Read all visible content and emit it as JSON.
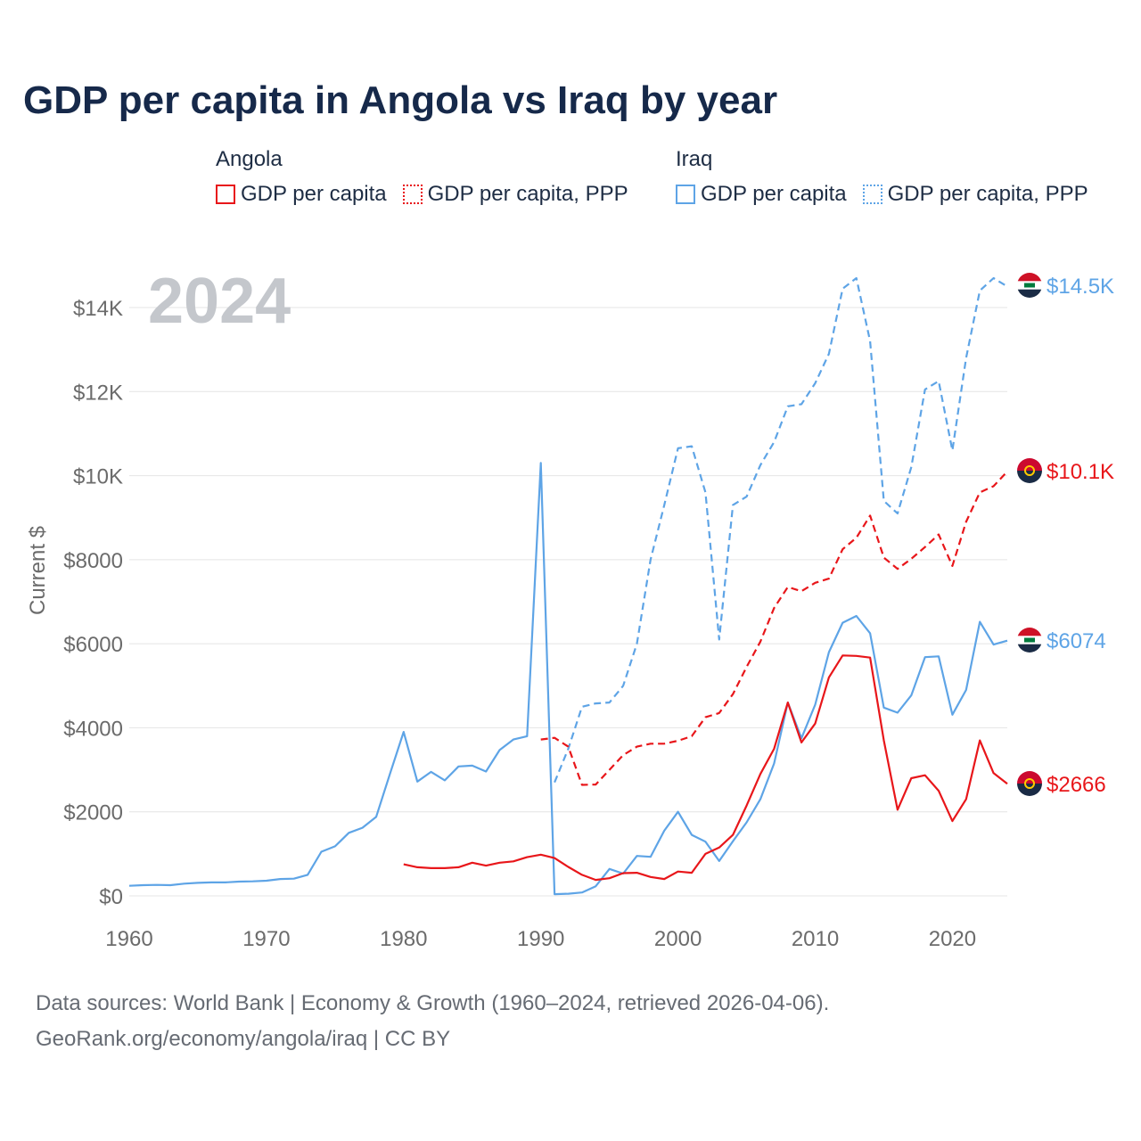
{
  "title": "GDP per capita in Angola vs Iraq by year",
  "year_overlay": "2024",
  "legend": {
    "groups": [
      {
        "name": "Angola",
        "items": [
          "GDP per capita",
          "GDP per capita, PPP"
        ]
      },
      {
        "name": "Iraq",
        "items": [
          "GDP per capita",
          "GDP per capita, PPP"
        ]
      }
    ]
  },
  "source": {
    "line1": "Data sources: World Bank | Economy & Growth (1960–2024, retrieved 2026-04-06).",
    "line2": "GeoRank.org/economy/angola/iraq | CC BY"
  },
  "colors": {
    "angola": "#e8161a",
    "iraq": "#5ea4e6",
    "grid": "#e4e4e4",
    "axis_text": "#6b6b6b",
    "overlay": "#c4c7cc"
  },
  "chart_data": {
    "type": "line",
    "title": "GDP per capita in Angola vs Iraq by year",
    "xlabel": "",
    "ylabel": "Current $",
    "xlim": [
      1960,
      2024
    ],
    "ylim": [
      0,
      14000
    ],
    "grid": true,
    "x_ticks": [
      1960,
      1970,
      1980,
      1990,
      2000,
      2010,
      2020
    ],
    "x_tick_labels": [
      "1960",
      "1970",
      "1980",
      "1990",
      "2000",
      "2010",
      "2020"
    ],
    "y_ticks": [
      0,
      2000,
      4000,
      6000,
      8000,
      10000,
      12000,
      14000
    ],
    "y_tick_labels": [
      "$0",
      "$2000",
      "$4000",
      "$6000",
      "$8000",
      "$10K",
      "$12K",
      "$14K"
    ],
    "series": [
      {
        "name": "Iraq GDP per capita",
        "country": "Iraq",
        "style": "solid",
        "color": "#5ea4e6",
        "end_label": "$6074",
        "x": [
          1960,
          1961,
          1962,
          1963,
          1964,
          1965,
          1966,
          1967,
          1968,
          1969,
          1970,
          1971,
          1972,
          1973,
          1974,
          1975,
          1976,
          1977,
          1978,
          1979,
          1980,
          1981,
          1982,
          1983,
          1984,
          1985,
          1986,
          1987,
          1988,
          1989,
          1990,
          1991,
          1992,
          1993,
          1994,
          1995,
          1996,
          1997,
          1998,
          1999,
          2000,
          2001,
          2002,
          2003,
          2004,
          2005,
          2006,
          2007,
          2008,
          2009,
          2010,
          2011,
          2012,
          2013,
          2014,
          2015,
          2016,
          2017,
          2018,
          2019,
          2020,
          2021,
          2022,
          2023,
          2024
        ],
        "values": [
          240,
          255,
          260,
          255,
          290,
          310,
          320,
          320,
          340,
          345,
          360,
          400,
          410,
          500,
          1050,
          1180,
          1500,
          1620,
          1880,
          2900,
          3900,
          2720,
          2950,
          2750,
          3080,
          3100,
          2960,
          3470,
          3720,
          3800,
          10300,
          40,
          50,
          80,
          230,
          640,
          530,
          950,
          930,
          1550,
          2000,
          1450,
          1290,
          830,
          1300,
          1750,
          2300,
          3150,
          4600,
          3750,
          4550,
          5800,
          6500,
          6660,
          6250,
          4480,
          4360,
          4770,
          5680,
          5700,
          4310,
          4900,
          6520,
          5980,
          6074
        ]
      },
      {
        "name": "Iraq GDP per capita, PPP",
        "country": "Iraq",
        "style": "dashed",
        "color": "#5ea4e6",
        "end_label": "$14.5K",
        "x": [
          1991,
          1992,
          1993,
          1994,
          1995,
          1996,
          1997,
          1998,
          1999,
          2000,
          2001,
          2002,
          2003,
          2004,
          2005,
          2006,
          2007,
          2008,
          2009,
          2010,
          2011,
          2012,
          2013,
          2014,
          2015,
          2016,
          2017,
          2018,
          2019,
          2020,
          2021,
          2022,
          2023,
          2024
        ],
        "values": [
          2700,
          3500,
          4500,
          4580,
          4600,
          5000,
          6000,
          8000,
          9300,
          10650,
          10700,
          9600,
          6100,
          9300,
          9500,
          10250,
          10800,
          11650,
          11700,
          12200,
          12900,
          14450,
          14700,
          13200,
          9400,
          9100,
          10200,
          12050,
          12250,
          10600,
          12800,
          14400,
          14700,
          14500
        ]
      },
      {
        "name": "Angola GDP per capita",
        "country": "Angola",
        "style": "solid",
        "color": "#e8161a",
        "end_label": "$2666",
        "x": [
          1980,
          1981,
          1982,
          1983,
          1984,
          1985,
          1986,
          1987,
          1988,
          1989,
          1990,
          1991,
          1992,
          1993,
          1994,
          1995,
          1996,
          1997,
          1998,
          1999,
          2000,
          2001,
          2002,
          2003,
          2004,
          2005,
          2006,
          2007,
          2008,
          2009,
          2010,
          2011,
          2012,
          2013,
          2014,
          2015,
          2016,
          2017,
          2018,
          2019,
          2020,
          2021,
          2022,
          2023,
          2024
        ],
        "values": [
          750,
          680,
          660,
          660,
          680,
          790,
          720,
          790,
          820,
          920,
          980,
          900,
          690,
          500,
          380,
          420,
          540,
          550,
          450,
          400,
          580,
          550,
          1000,
          1150,
          1450,
          2150,
          2900,
          3500,
          4600,
          3650,
          4100,
          5200,
          5720,
          5710,
          5670,
          3700,
          2050,
          2800,
          2870,
          2500,
          1780,
          2300,
          3700,
          2920,
          2666
        ]
      },
      {
        "name": "Angola GDP per capita, PPP",
        "country": "Angola",
        "style": "dashed",
        "color": "#e8161a",
        "end_label": "$10.1K",
        "x": [
          1990,
          1991,
          1992,
          1993,
          1994,
          1995,
          1996,
          1997,
          1998,
          1999,
          2000,
          2001,
          2002,
          2003,
          2004,
          2005,
          2006,
          2007,
          2008,
          2009,
          2010,
          2011,
          2012,
          2013,
          2014,
          2015,
          2016,
          2017,
          2018,
          2019,
          2020,
          2021,
          2022,
          2023,
          2024
        ],
        "values": [
          3720,
          3760,
          3550,
          2640,
          2650,
          3000,
          3350,
          3550,
          3620,
          3620,
          3690,
          3800,
          4250,
          4350,
          4800,
          5450,
          6050,
          6850,
          7350,
          7250,
          7450,
          7550,
          8250,
          8520,
          9050,
          8050,
          7780,
          8020,
          8300,
          8600,
          7850,
          8900,
          9600,
          9750,
          10100
        ]
      }
    ]
  }
}
